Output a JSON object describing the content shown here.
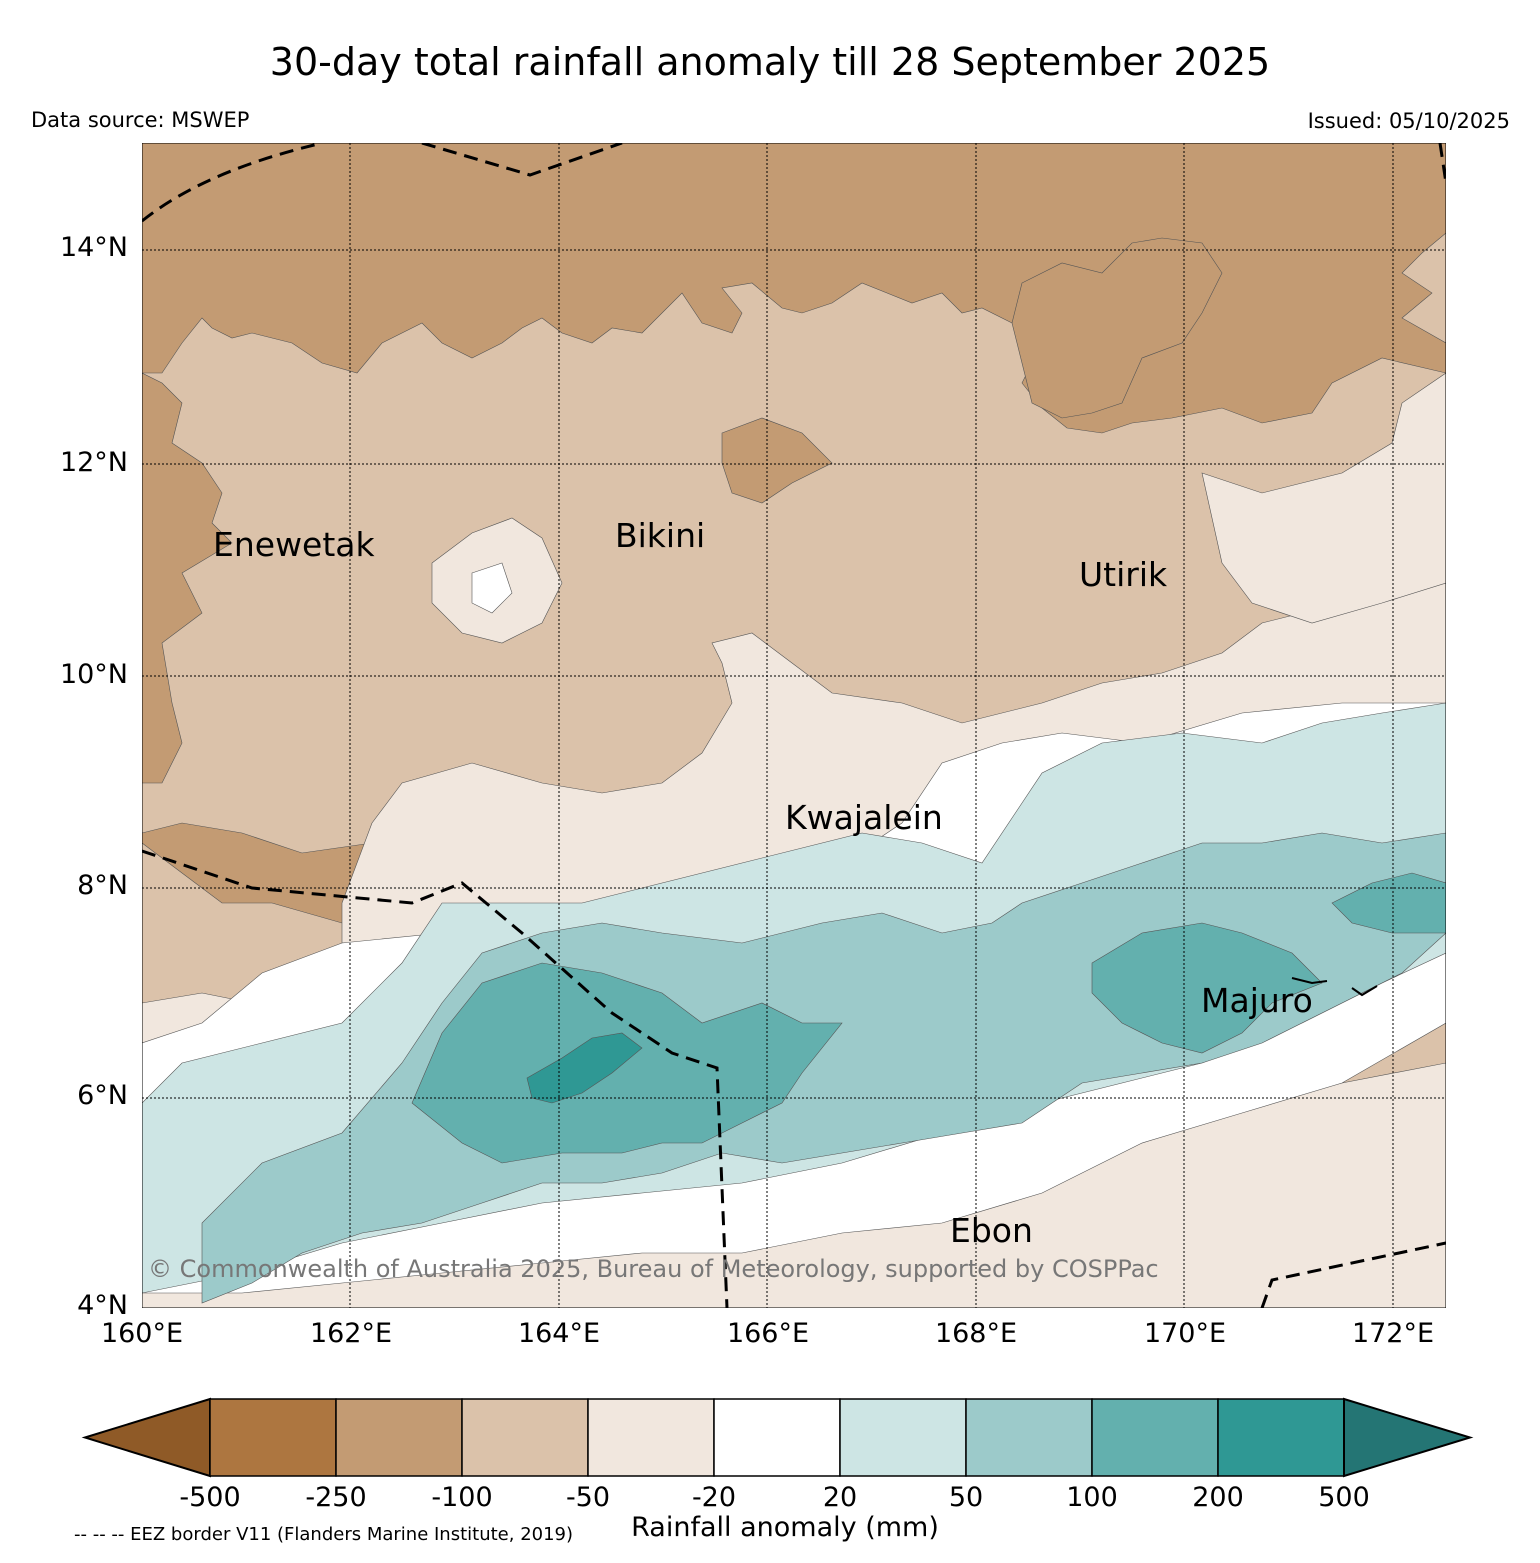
{
  "header": {
    "title": "30-day total rainfall anomaly till 28 September 2025",
    "source": "Data source: MSWEP",
    "issued": "Issued: 05/10/2025"
  },
  "map": {
    "lat_labels": [
      "14°N",
      "12°N",
      "10°N",
      "8°N",
      "6°N",
      "4°N"
    ],
    "lon_labels": [
      "160°E",
      "162°E",
      "164°E",
      "166°E",
      "168°E",
      "170°E",
      "172°E"
    ],
    "places": [
      {
        "name": "Enewetak"
      },
      {
        "name": "Bikini"
      },
      {
        "name": "Utirik"
      },
      {
        "name": "Kwajalein"
      },
      {
        "name": "Majuro"
      },
      {
        "name": "Ebon"
      }
    ],
    "copyright": "© Commonwealth of Australia 2025, Bureau of Meteorology, supported by COSPPac"
  },
  "colorbar": {
    "label": "Rainfall anomaly (mm)",
    "ticks": [
      "-500",
      "-250",
      "-100",
      "-50",
      "-20",
      "20",
      "50",
      "100",
      "200",
      "500"
    ],
    "colors": [
      "#8f5a27",
      "#ad7640",
      "#c39b73",
      "#dbc2aa",
      "#f1e7de",
      "#ffffff",
      "#cde5e4",
      "#9ccaca",
      "#63b0ae",
      "#2f9894",
      "#247574"
    ]
  },
  "footer": {
    "eez_note": "-- -- -- EEZ border V11 (Flanders Marine Institute, 2019)"
  }
}
